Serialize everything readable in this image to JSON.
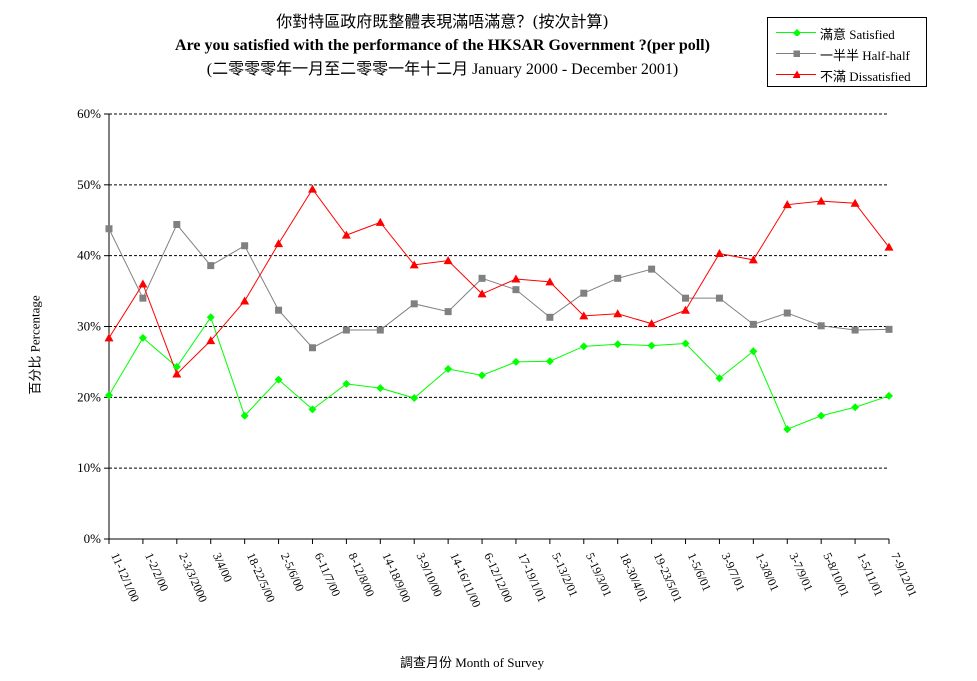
{
  "chart_data": {
    "type": "line",
    "title": "你對特區政府既整體表現滿唔滿意？(按次計算)",
    "subtitle": "Are you satisfied with the performance of the HKSAR Government ?(per poll)",
    "period": "(二零零零年一月至二零零一年十二月 January 2000 - December 2001)",
    "xlabel": "調查月份 Month of Survey",
    "ylabel": "百分比 Percentage",
    "ylim": [
      0,
      60
    ],
    "yticks": [
      "0%",
      "10%",
      "20%",
      "30%",
      "40%",
      "50%",
      "60%"
    ],
    "grid": true,
    "legend_position": "top-right",
    "categories": [
      "11-12/1/00",
      "1-2/2/00",
      "2-3/3/2000",
      "3/4/00",
      "18-22/5/00",
      "2-5/6/00",
      "6-11/7/00",
      "8-12/8/00",
      "14-18/9/00",
      "3-9/10/00",
      "14-16/11/00",
      "6-12/12/00",
      "17-19/1/01",
      "5-13/2/01",
      "5-19/3/01",
      "18-30/4/01",
      "19-23/5/01",
      "1-5/6/01",
      "3-9/7/01",
      "1-3/8/01",
      "3-7/9/01",
      "5-8/10/01",
      "1-5/11/01",
      "7-9/12/01"
    ],
    "series": [
      {
        "name": "滿意 Satisfied",
        "color": "#00ff00",
        "marker": "diamond",
        "values": [
          20.3,
          28.4,
          24.3,
          31.3,
          17.4,
          22.5,
          18.3,
          21.9,
          21.3,
          19.9,
          24.0,
          23.1,
          25.0,
          25.1,
          27.2,
          27.5,
          27.3,
          27.6,
          22.7,
          26.5,
          15.5,
          17.4,
          18.6,
          20.2
        ]
      },
      {
        "name": "一半半 Half-half",
        "color": "#808080",
        "marker": "square",
        "values": [
          43.8,
          34.0,
          44.4,
          38.6,
          41.4,
          32.3,
          27.0,
          29.5,
          29.5,
          33.2,
          32.1,
          36.8,
          35.2,
          31.3,
          34.7,
          36.8,
          38.1,
          34.0,
          34.0,
          30.3,
          31.9,
          30.1,
          29.5,
          29.6
        ]
      },
      {
        "name": "不滿 Dissatisfied",
        "color": "#ff0000",
        "marker": "triangle",
        "values": [
          28.4,
          36.0,
          23.3,
          28.0,
          33.6,
          41.7,
          49.4,
          42.9,
          44.7,
          38.7,
          39.3,
          34.6,
          36.7,
          36.3,
          31.5,
          31.8,
          30.4,
          32.3,
          40.3,
          39.4,
          47.2,
          47.7,
          47.4,
          41.2
        ]
      }
    ]
  }
}
